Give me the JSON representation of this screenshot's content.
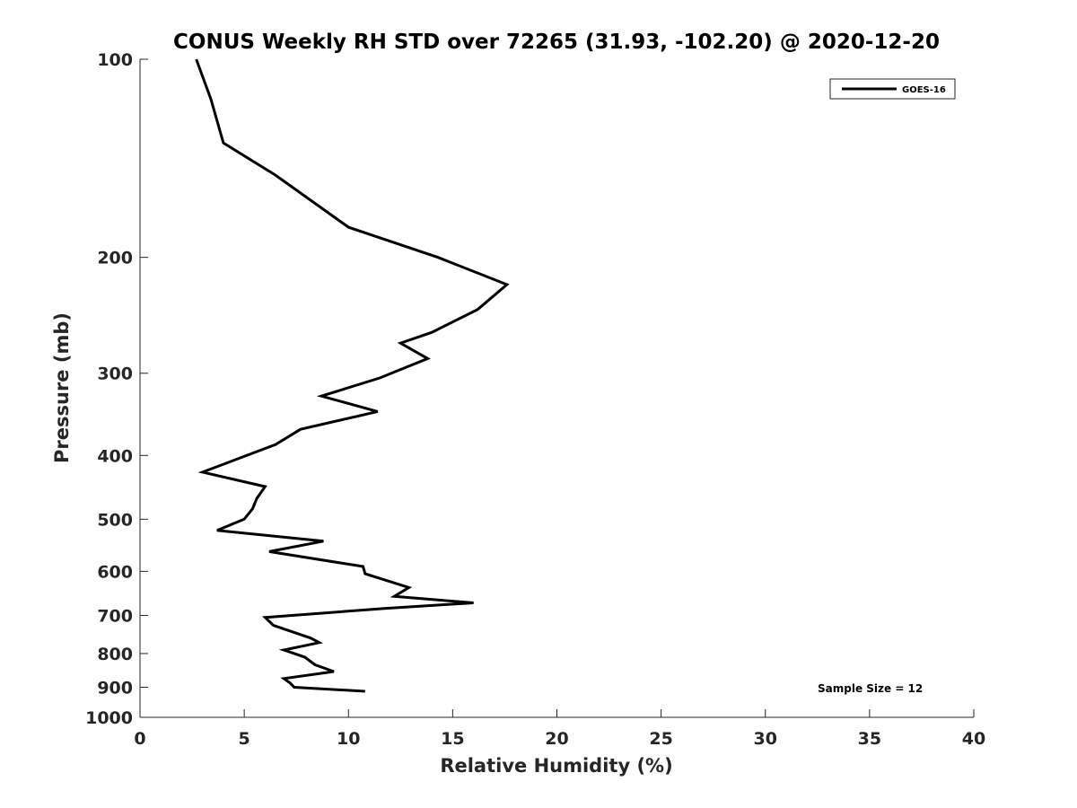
{
  "chart_data": {
    "type": "line",
    "title": "CONUS Weekly RH STD over 72265 (31.93, -102.20) @ 2020-12-20",
    "xlabel": "Relative Humidity (%)",
    "ylabel": "Pressure (mb)",
    "xlim": [
      0,
      40
    ],
    "ylim": [
      100,
      1000
    ],
    "yscale": "log",
    "y_reversed": true,
    "grid": false,
    "x_ticks": [
      0,
      5,
      10,
      15,
      20,
      25,
      30,
      35,
      40
    ],
    "x_tick_labels": [
      "0",
      "5",
      "10",
      "15",
      "20",
      "25",
      "30",
      "35",
      "40"
    ],
    "y_ticks": [
      100,
      200,
      300,
      400,
      500,
      600,
      700,
      800,
      900,
      1000
    ],
    "y_tick_labels": [
      "100",
      "200",
      "300",
      "400",
      "500",
      "600",
      "700",
      "800",
      "900",
      "1000"
    ],
    "legend_position": "top-right",
    "series": [
      {
        "name": "GOES-16",
        "color": "#000000",
        "x": [
          2.7,
          3.4,
          4.0,
          6.5,
          10.0,
          14.3,
          17.6,
          16.2,
          14.0,
          12.5,
          13.8,
          11.5,
          8.7,
          11.4,
          7.7,
          6.5,
          3.0,
          6.0,
          5.6,
          5.4,
          5.0,
          3.7,
          8.8,
          6.2,
          10.7,
          10.8,
          12.9,
          12.2,
          16.0,
          11.8,
          6.0,
          6.4,
          8.2,
          8.6,
          6.9,
          7.9,
          8.4,
          9.3,
          6.9,
          7.2,
          7.4,
          10.8
        ],
        "y": [
          100,
          115,
          134,
          150,
          180,
          200,
          220,
          240,
          260,
          270,
          285,
          305,
          325,
          343,
          365,
          385,
          424,
          446,
          465,
          482,
          500,
          520,
          540,
          560,
          590,
          605,
          635,
          655,
          670,
          683,
          705,
          725,
          758,
          770,
          790,
          810,
          832,
          852,
          873,
          887,
          900,
          913
        ]
      }
    ],
    "annotations": [
      {
        "text": "Sample Size = 12"
      }
    ]
  }
}
